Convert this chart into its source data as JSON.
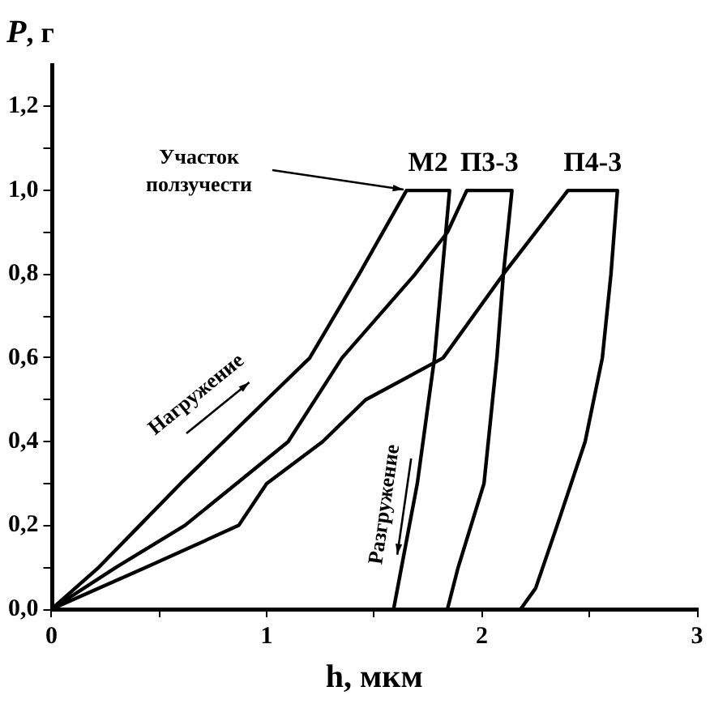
{
  "chart_data": {
    "type": "line",
    "xlabel": "h, мкм",
    "ylabel": "P, г",
    "xlim": [
      0,
      3
    ],
    "ylim": [
      0,
      1.3
    ],
    "xticks": [
      0,
      {
        "value": 0.5,
        "label": null
      },
      1,
      {
        "value": 1.5,
        "label": null
      },
      2,
      {
        "value": 2.5,
        "label": null
      },
      3
    ],
    "yticks": [
      {
        "value": 0,
        "label": "0,0"
      },
      {
        "value": 0.1,
        "label": null
      },
      {
        "value": 0.2,
        "label": "0,2"
      },
      {
        "value": 0.3,
        "label": null
      },
      {
        "value": 0.4,
        "label": "0,4"
      },
      {
        "value": 0.5,
        "label": null
      },
      {
        "value": 0.6,
        "label": "0,6"
      },
      {
        "value": 0.7,
        "label": null
      },
      {
        "value": 0.8,
        "label": "0,8"
      },
      {
        "value": 0.9,
        "label": null
      },
      {
        "value": 1.0,
        "label": "1,0"
      },
      {
        "value": 1.1,
        "label": null
      },
      {
        "value": 1.2,
        "label": "1,2"
      }
    ],
    "grid": false,
    "legend": "top",
    "marker": "none",
    "line_style": "solid",
    "series": [
      {
        "name": "M2",
        "color": "#000000",
        "x": [
          0,
          0.22,
          0.41,
          0.6,
          0.8,
          1.0,
          1.2,
          1.43,
          1.65,
          1.85,
          1.78,
          1.7,
          1.59
        ],
        "values": [
          0,
          0.1,
          0.2,
          0.3,
          0.4,
          0.5,
          0.6,
          0.8,
          1.0,
          1.0,
          0.6,
          0.3,
          0
        ]
      },
      {
        "name": "П3-3",
        "color": "#000000",
        "x": [
          0,
          0.3,
          0.62,
          1.1,
          1.35,
          1.69,
          1.84,
          1.93,
          2.14,
          2.1,
          2.07,
          2.01,
          1.89,
          1.84
        ],
        "values": [
          0,
          0.1,
          0.2,
          0.4,
          0.6,
          0.8,
          0.9,
          1.0,
          1.0,
          0.8,
          0.6,
          0.3,
          0.1,
          0
        ]
      },
      {
        "name": "П4-3",
        "color": "#000000",
        "x": [
          0,
          0.44,
          0.87,
          1.0,
          1.26,
          1.46,
          1.82,
          2.1,
          2.4,
          2.63,
          2.6,
          2.56,
          2.48,
          2.35,
          2.25,
          2.18
        ],
        "values": [
          0,
          0.1,
          0.2,
          0.3,
          0.4,
          0.5,
          0.6,
          0.8,
          1.0,
          1.0,
          0.8,
          0.6,
          0.4,
          0.2,
          0.05,
          0
        ]
      }
    ],
    "annotations": [
      "Участок\nползучести",
      "Нагружение",
      "Разгружение"
    ]
  }
}
